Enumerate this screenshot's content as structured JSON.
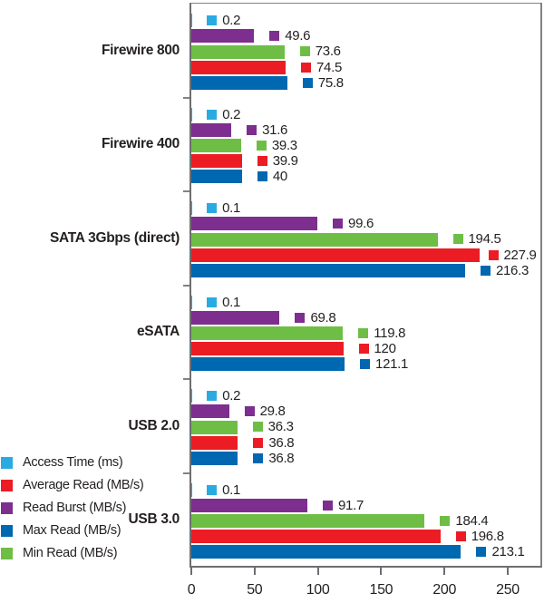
{
  "chart_data": {
    "type": "bar",
    "orientation": "horizontal",
    "title": "",
    "xlabel": "",
    "ylabel": "",
    "xlim": [
      0,
      250
    ],
    "grid": false,
    "legend_position": "bottom-left",
    "categories": [
      "Firewire 800",
      "Firewire 400",
      "SATA 3Gbps (direct)",
      "eSATA",
      "USB 2.0",
      "USB 3.0"
    ],
    "series": [
      {
        "name": "Access Time (ms)",
        "color": "#29ABE2",
        "values": [
          0.2,
          0.2,
          0.1,
          0.1,
          0.2,
          0.1
        ],
        "labels": [
          "0.2",
          "0.2",
          "0.1",
          "0.1",
          "0.2",
          "0.1"
        ]
      },
      {
        "name": "Read Burst (MB/s)",
        "color": "#7D2E8E",
        "values": [
          49.6,
          31.6,
          99.6,
          69.8,
          29.8,
          91.7
        ],
        "labels": [
          "49.6",
          "31.6",
          "99.6",
          "69.8",
          "29.8",
          "91.7"
        ]
      },
      {
        "name": "Min Read (MB/s)",
        "color": "#6EBE46",
        "values": [
          73.6,
          39.3,
          194.5,
          119.8,
          36.3,
          184.4
        ],
        "labels": [
          "73.6",
          "39.3",
          "194.5",
          "119.8",
          "36.3",
          "184.4"
        ]
      },
      {
        "name": "Average Read (MB/s)",
        "color": "#EC1C24",
        "values": [
          74.5,
          39.9,
          227.9,
          120,
          36.8,
          196.8
        ],
        "labels": [
          "74.5",
          "39.9",
          "227.9",
          "120",
          "36.8",
          "196.8"
        ]
      },
      {
        "name": "Max Read (MB/s)",
        "color": "#0067B1",
        "values": [
          75.8,
          40,
          216.3,
          121.1,
          36.8,
          213.1
        ],
        "labels": [
          "75.8",
          "40",
          "216.3",
          "121.1",
          "36.8",
          "213.1"
        ]
      }
    ],
    "x_ticks": {
      "values": [
        0,
        50,
        100,
        150,
        200,
        250
      ],
      "labels": [
        "0",
        "50",
        "100",
        "150",
        "200",
        "250"
      ]
    },
    "legend": [
      {
        "label": "Access Time (ms)",
        "color": "#29ABE2"
      },
      {
        "label": "Average Read (MB/s)",
        "color": "#EC1C24"
      },
      {
        "label": "Read Burst (MB/s)",
        "color": "#7D2E8E"
      },
      {
        "label": "Max Read (MB/s)",
        "color": "#0067B1"
      },
      {
        "label": "Min Read (MB/s)",
        "color": "#6EBE46"
      }
    ],
    "colors": {
      "axis": "#6D6E71",
      "tick": "#808285",
      "text": "#231F20"
    }
  }
}
